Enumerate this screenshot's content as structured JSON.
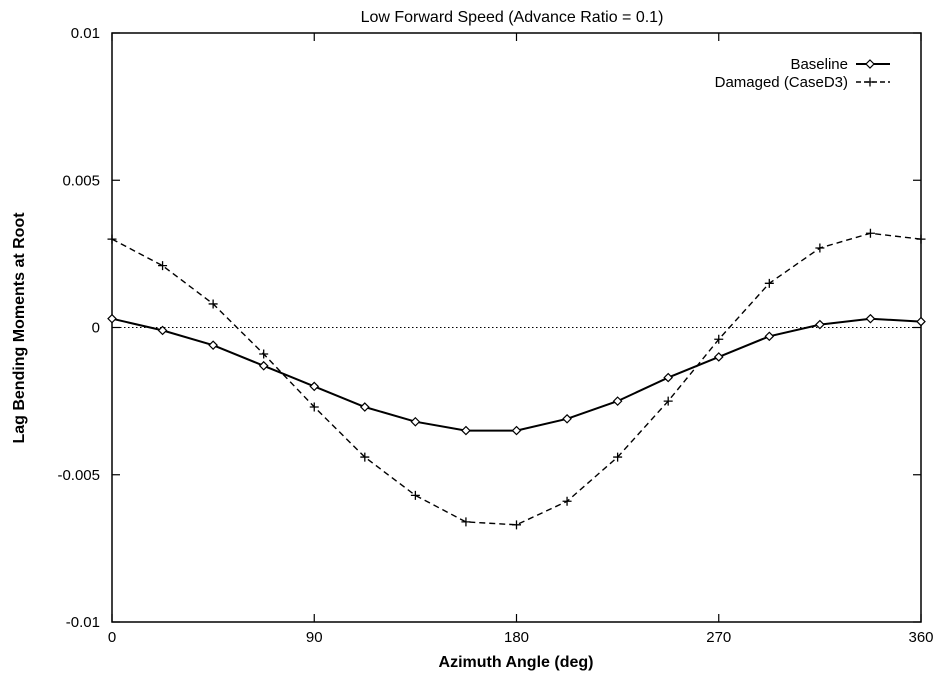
{
  "chart_data": {
    "type": "line",
    "title": "Low Forward Speed (Advance Ratio = 0.1)",
    "xlabel": "Azimuth Angle (deg)",
    "ylabel": "Lag Bending Moments at Root",
    "xlim": [
      0,
      360
    ],
    "ylim": [
      -0.01,
      0.01
    ],
    "xticks": [
      0,
      90,
      180,
      270,
      360
    ],
    "xtick_labels": [
      "0",
      "90",
      "180",
      "270",
      "360"
    ],
    "yticks": [
      -0.01,
      -0.005,
      0,
      0.005,
      0.01
    ],
    "ytick_labels": [
      "-0.01",
      "-0.005",
      "0",
      "0.005",
      "0.01"
    ],
    "grid": false,
    "legend_position": "top-right",
    "zero_line": true,
    "x": [
      0,
      22.5,
      45,
      67.5,
      90,
      112.5,
      135,
      157.5,
      180,
      202.5,
      225,
      247.5,
      270,
      292.5,
      315,
      337.5,
      360
    ],
    "series": [
      {
        "name": "Baseline",
        "marker": "diamond",
        "line": "solid",
        "values": [
          0.0003,
          -0.0001,
          -0.0006,
          -0.0013,
          -0.002,
          -0.0027,
          -0.0032,
          -0.0035,
          -0.0035,
          -0.0031,
          -0.0025,
          -0.0017,
          -0.001,
          -0.0003,
          0.0001,
          0.0003,
          0.0002
        ]
      },
      {
        "name": "Damaged (CaseD3)",
        "marker": "plus",
        "line": "dashed",
        "values": [
          0.003,
          0.0021,
          0.0008,
          -0.0009,
          -0.0027,
          -0.0044,
          -0.0057,
          -0.0066,
          -0.0067,
          -0.0059,
          -0.0044,
          -0.0025,
          -0.0004,
          0.0015,
          0.0027,
          0.0032,
          0.003
        ]
      }
    ]
  }
}
